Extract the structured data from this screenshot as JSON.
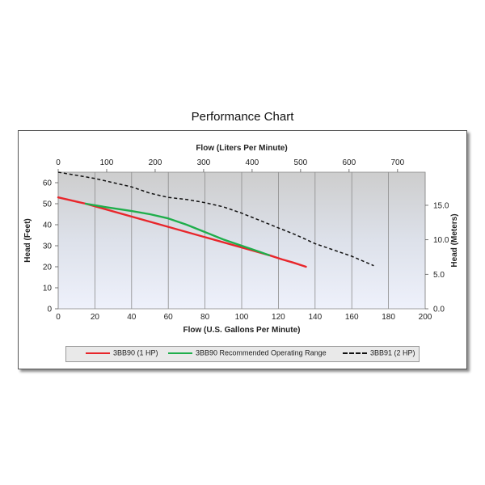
{
  "page": {
    "title": "Performance Chart"
  },
  "chart_data": {
    "type": "line",
    "title": "Performance Chart",
    "xlabel": "Flow (U.S. Gallons Per Minute)",
    "ylabel": "Head (Feet)",
    "x2label": "Flow (Liters Per Minute)",
    "y2label": "Head (Meters)",
    "xlim": [
      0,
      200
    ],
    "ylim": [
      0,
      65
    ],
    "x2lim": [
      0,
      757
    ],
    "y2lim": [
      0,
      19.8
    ],
    "x_ticks": [
      "0",
      "20",
      "40",
      "60",
      "80",
      "100",
      "120",
      "140",
      "160",
      "180",
      "200"
    ],
    "y_ticks": [
      "0",
      "10",
      "20",
      "30",
      "40",
      "50",
      "60"
    ],
    "x2_ticks": [
      "0",
      "100",
      "200",
      "300",
      "400",
      "500",
      "600",
      "700"
    ],
    "y2_ticks": [
      "0.0",
      "5.0",
      "10.0",
      "15.0"
    ],
    "grid": "vertical",
    "legend_position": "bottom",
    "series": [
      {
        "name": "3BB90 (1 HP)",
        "color": "#e8262b",
        "style": "solid",
        "x": [
          0,
          5,
          10,
          15,
          115,
          122,
          128,
          135
        ],
        "y": [
          53,
          52,
          51,
          50,
          25.5,
          23.5,
          22,
          20
        ]
      },
      {
        "name": "3BB90 Recommended Operating Range",
        "color": "#1fae4b",
        "style": "solid",
        "x": [
          15,
          25,
          40,
          50,
          60,
          70,
          80,
          90,
          100,
          110,
          115
        ],
        "y": [
          50,
          48.5,
          46.5,
          45,
          43,
          40,
          36.5,
          33,
          30,
          27,
          25.5
        ]
      },
      {
        "name": "3BB91 (2 HP)",
        "color": "#111111",
        "style": "dashed",
        "x": [
          0,
          20,
          40,
          50,
          60,
          70,
          80,
          90,
          100,
          110,
          120,
          130,
          140,
          150,
          160,
          172
        ],
        "y": [
          65,
          62,
          58,
          55,
          53,
          52,
          50.5,
          48.5,
          45.5,
          42,
          38.5,
          35,
          31,
          28,
          25,
          20.5
        ]
      }
    ]
  }
}
